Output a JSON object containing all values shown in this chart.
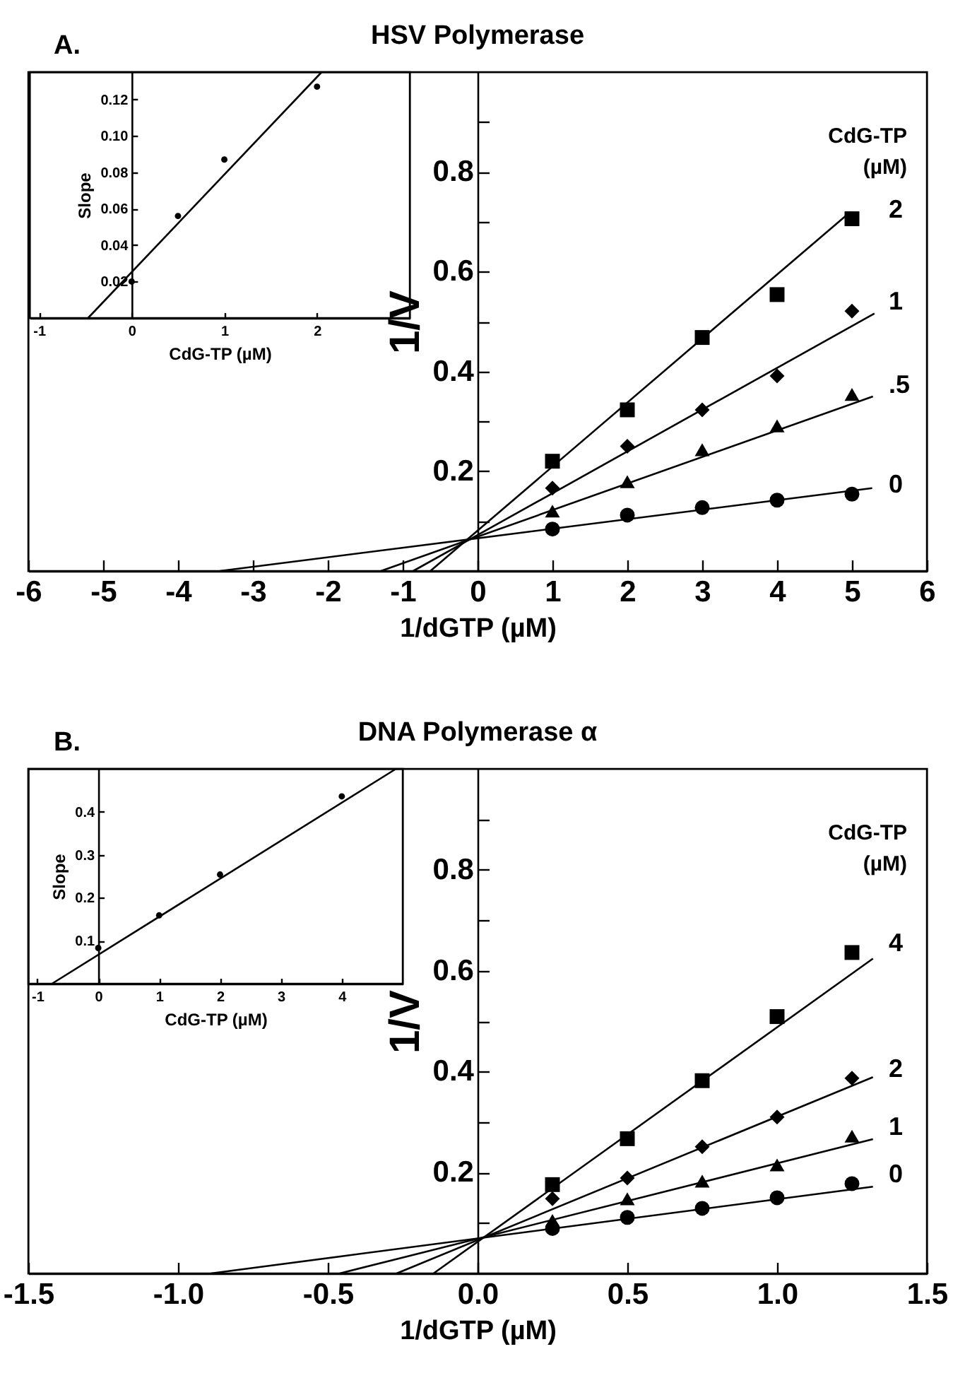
{
  "chart_data": [
    {
      "type": "scatter",
      "title": "HSV Polymerase",
      "annotations": [
        "A."
      ],
      "xlabel": "1/dGTP (µM)",
      "ylabel": "1/V",
      "legend_title": "CdG-TP\n(µM)",
      "xlim": [
        -6,
        6
      ],
      "ylim": [
        0,
        1.0
      ],
      "xticks": [
        -6,
        -5,
        -4,
        -3,
        -2,
        -1,
        0,
        1,
        2,
        3,
        4,
        5,
        6
      ],
      "yticks": [
        {
          "value": 0.1,
          "label": null
        },
        0.2,
        {
          "value": 0.3,
          "label": null
        },
        0.4,
        {
          "value": 0.5,
          "label": null
        },
        0.6,
        {
          "value": 0.7,
          "label": null
        },
        0.8,
        {
          "value": 0.9,
          "label": null
        }
      ],
      "series": [
        {
          "type": "scatter",
          "name": "2",
          "marker": "square",
          "color": "#000000",
          "x": [
            1,
            2,
            3,
            4,
            5
          ],
          "values": [
            0.22,
            0.323,
            0.468,
            0.554,
            0.706
          ]
        },
        {
          "type": "scatter",
          "name": "1",
          "marker": "diamond",
          "color": "#000000",
          "x": [
            1,
            2,
            3,
            4,
            5
          ],
          "values": [
            0.166,
            0.25,
            0.323,
            0.391,
            0.521
          ]
        },
        {
          "type": "scatter",
          "name": ".5",
          "marker": "triangle",
          "color": "#000000",
          "x": [
            1,
            2,
            3,
            4,
            5
          ],
          "values": [
            0.12,
            0.179,
            0.243,
            0.291,
            0.354
          ]
        },
        {
          "type": "scatter",
          "name": "0",
          "marker": "circle",
          "color": "#000000",
          "x": [
            1,
            2,
            3,
            4,
            5
          ],
          "values": [
            0.084,
            0.112,
            0.127,
            0.142,
            0.154
          ]
        },
        {
          "type": "line",
          "color": "#000000",
          "x": [
            -0.63,
            4.98
          ],
          "values": [
            0,
            0.72
          ]
        },
        {
          "type": "line",
          "color": "#000000",
          "x": [
            -0.86,
            5.3
          ],
          "values": [
            0,
            0.516
          ]
        },
        {
          "type": "line",
          "color": "#000000",
          "x": [
            -1.29,
            5.28
          ],
          "values": [
            0,
            0.35
          ]
        },
        {
          "type": "line",
          "color": "#000000",
          "x": [
            -3.44,
            5.27
          ],
          "values": [
            0,
            0.166
          ]
        }
      ]
    },
    {
      "type": "scatter",
      "xlabel": "CdG-TP (µM)",
      "ylabel": "Slope",
      "xlim": [
        -1.1,
        3
      ],
      "ylim": [
        0,
        0.135
      ],
      "xticks": [
        -1,
        0,
        1,
        2
      ],
      "yticks": [
        0.02,
        0.04,
        0.06,
        0.08,
        {
          "value": 0.1,
          "label": "0.10"
        },
        0.12
      ],
      "series": [
        {
          "type": "scatter",
          "marker": "circle",
          "color": "#000000",
          "x": [
            0,
            0.5,
            1,
            2
          ],
          "values": [
            0.02,
            0.056,
            0.087,
            0.127
          ]
        },
        {
          "type": "line",
          "color": "#000000",
          "x": [
            -0.47,
            2.05
          ],
          "values": [
            0,
            0.135
          ]
        }
      ]
    },
    {
      "type": "scatter",
      "title": "DNA Polymerase α",
      "annotations": [
        "B."
      ],
      "xlabel": "1/dGTP (µM)",
      "ylabel": "1/V",
      "legend_title": "CdG-TP\n(µM)",
      "xlim": [
        -1.5,
        1.5
      ],
      "ylim": [
        0,
        1.0
      ],
      "xticks": [
        -1.5,
        {
          "value": -1,
          "label": "-1.0"
        },
        -0.5,
        {
          "value": 0,
          "label": "0.0"
        },
        0.5,
        {
          "value": 1,
          "label": "1.0"
        },
        1.5
      ],
      "yticks": [
        {
          "value": 0.1,
          "label": null
        },
        0.2,
        {
          "value": 0.3,
          "label": null
        },
        0.4,
        {
          "value": 0.5,
          "label": null
        },
        0.6,
        {
          "value": 0.7,
          "label": null
        },
        0.8,
        {
          "value": 0.9,
          "label": null
        }
      ],
      "series": [
        {
          "type": "scatter",
          "name": "4",
          "marker": "square",
          "color": "#000000",
          "x": [
            0.25,
            0.5,
            0.75,
            1.0,
            1.25
          ],
          "values": [
            0.176,
            0.267,
            0.382,
            0.509,
            0.636
          ]
        },
        {
          "type": "scatter",
          "name": "2",
          "marker": "diamond",
          "color": "#000000",
          "x": [
            0.25,
            0.5,
            0.75,
            1.0,
            1.25
          ],
          "values": [
            0.148,
            0.189,
            0.251,
            0.31,
            0.387
          ]
        },
        {
          "type": "scatter",
          "name": "1",
          "marker": "triangle",
          "color": "#000000",
          "x": [
            0.25,
            0.5,
            0.75,
            1.0,
            1.25
          ],
          "values": [
            0.105,
            0.148,
            0.183,
            0.215,
            0.272
          ]
        },
        {
          "type": "scatter",
          "name": "0",
          "marker": "circle",
          "color": "#000000",
          "x": [
            0.25,
            0.5,
            0.75,
            1.0,
            1.25
          ],
          "values": [
            0.089,
            0.111,
            0.129,
            0.15,
            0.178
          ]
        },
        {
          "type": "line",
          "color": "#000000",
          "x": [
            -0.147,
            1.32
          ],
          "values": [
            0,
            0.624
          ]
        },
        {
          "type": "line",
          "color": "#000000",
          "x": [
            -0.27,
            1.32
          ],
          "values": [
            0,
            0.389
          ]
        },
        {
          "type": "line",
          "color": "#000000",
          "x": [
            -0.46,
            1.32
          ],
          "values": [
            0,
            0.266
          ]
        },
        {
          "type": "line",
          "color": "#000000",
          "x": [
            -0.89,
            1.32
          ],
          "values": [
            0,
            0.172
          ]
        }
      ]
    },
    {
      "type": "scatter",
      "xlabel": "CdG-TP (µM)",
      "ylabel": "Slope",
      "xlim": [
        -1.15,
        5
      ],
      "ylim": [
        0,
        0.5
      ],
      "xticks": [
        -1,
        0,
        1,
        2,
        3,
        4
      ],
      "yticks": [
        0.1,
        0.2,
        0.3,
        0.4
      ],
      "series": [
        {
          "type": "scatter",
          "marker": "circle",
          "color": "#000000",
          "x": [
            0,
            1,
            2,
            4
          ],
          "values": [
            0.083,
            0.159,
            0.254,
            0.436
          ]
        },
        {
          "type": "line",
          "color": "#000000",
          "x": [
            -0.76,
            4.89
          ],
          "values": [
            0,
            0.5
          ]
        }
      ]
    }
  ]
}
